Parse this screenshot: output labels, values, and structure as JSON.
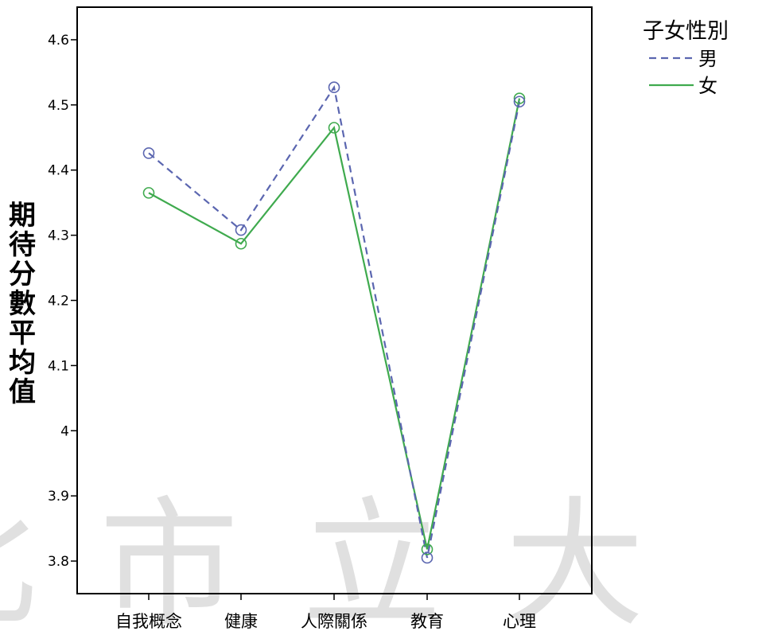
{
  "chart_data": {
    "type": "line",
    "ylabel": "期待分數平均值",
    "categories": [
      "自我概念",
      "健康",
      "人際關係",
      "教育",
      "心理"
    ],
    "ylim": [
      3.75,
      4.65
    ],
    "yticks": [
      3.8,
      3.9,
      4,
      4.1,
      4.2,
      4.3,
      4.4,
      4.5,
      4.6
    ],
    "ytick_labels": [
      "3.8",
      "3.9",
      "4",
      "4.1",
      "4.2",
      "4.3",
      "4.4",
      "4.5",
      "4.6"
    ],
    "grid": false,
    "legend": {
      "title": "子女性別",
      "placement": "outside-top-right"
    },
    "series": [
      {
        "name": "男",
        "style": "dashed",
        "color": "#5b66b0",
        "values": [
          4.426,
          4.308,
          4.527,
          3.805,
          4.505
        ]
      },
      {
        "name": "女",
        "style": "solid",
        "color": "#3faa4e",
        "values": [
          4.365,
          4.287,
          4.465,
          3.818,
          4.51
        ]
      }
    ],
    "watermark": "北市立大"
  }
}
